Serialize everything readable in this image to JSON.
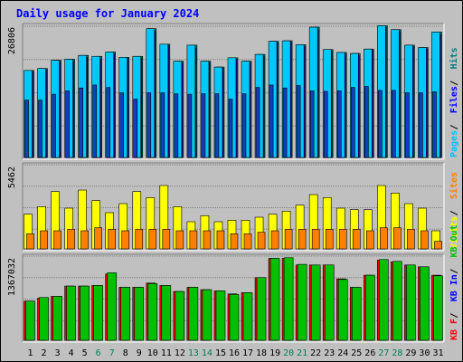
{
  "title": "Daily usage for January 2024",
  "colors": {
    "background": "#c0c0c0",
    "panel": "#c0c0c0",
    "title": "#0000ff",
    "pages": "#00c0ff",
    "files": "#0000ff",
    "hits": "#008080",
    "visits": "#ffff00",
    "sites": "#ff8000",
    "kb_in": "#ff0000",
    "kb_out": "#00c000",
    "weekend_day": "#00805c",
    "weekday_day": "#000000"
  },
  "chart_data": [
    {
      "type": "bar",
      "panel": "top",
      "y_max_label": "26806",
      "ylim": [
        0,
        26806
      ],
      "legend": [
        {
          "label": "Pages",
          "color": "#00c0ff"
        },
        {
          "label": "Files",
          "color": "#0000ff"
        },
        {
          "label": "Hits",
          "color": "#008080"
        }
      ],
      "categories": [
        "1",
        "2",
        "3",
        "4",
        "5",
        "6",
        "7",
        "8",
        "9",
        "10",
        "11",
        "12",
        "13",
        "14",
        "15",
        "16",
        "17",
        "18",
        "19",
        "20",
        "21",
        "22",
        "23",
        "24",
        "25",
        "26",
        "27",
        "28",
        "29",
        "30",
        "31"
      ],
      "series": [
        {
          "name": "Hits",
          "values": [
            17900,
            18300,
            20000,
            20200,
            21000,
            20800,
            21700,
            20600,
            20800,
            26500,
            23300,
            19800,
            23100,
            19800,
            18600,
            20500,
            19800,
            21200,
            23900,
            24000,
            23200,
            26800,
            22200,
            21600,
            21400,
            22300,
            27100,
            26300,
            23100,
            22600,
            25800
          ]
        },
        {
          "name": "Files",
          "values": [
            17700,
            18000,
            19700,
            19900,
            20600,
            20300,
            21300,
            20300,
            20500,
            26000,
            23000,
            19500,
            22500,
            19500,
            18300,
            20200,
            19500,
            20800,
            23600,
            23700,
            22800,
            26200,
            21900,
            21300,
            21000,
            22000,
            26800,
            25900,
            22800,
            22300,
            25300
          ]
        },
        {
          "name": "Pages",
          "values": [
            11800,
            11800,
            13000,
            13700,
            14300,
            14900,
            14400,
            13300,
            12000,
            13300,
            13300,
            13100,
            13000,
            13100,
            13100,
            12000,
            13100,
            14400,
            14900,
            14300,
            14800,
            13700,
            13600,
            13700,
            14400,
            14600,
            13800,
            13800,
            13300,
            13300,
            13500
          ]
        }
      ]
    },
    {
      "type": "bar",
      "panel": "middle",
      "y_max_label": "5462",
      "ylim": [
        0,
        5462
      ],
      "legend": [
        {
          "label": "Visits",
          "color": "#ffff00"
        },
        {
          "label": "Sites",
          "color": "#ff8000"
        }
      ],
      "categories": [
        "1",
        "2",
        "3",
        "4",
        "5",
        "6",
        "7",
        "8",
        "9",
        "10",
        "11",
        "12",
        "13",
        "14",
        "15",
        "16",
        "17",
        "18",
        "19",
        "20",
        "21",
        "22",
        "23",
        "24",
        "25",
        "26",
        "27",
        "28",
        "29",
        "30",
        "31"
      ],
      "series": [
        {
          "name": "Visits",
          "values": [
            2300,
            2800,
            3800,
            2700,
            3900,
            3200,
            2400,
            3000,
            3800,
            3400,
            4200,
            2800,
            1800,
            2200,
            1800,
            1900,
            1900,
            2100,
            2300,
            2500,
            2900,
            3600,
            3400,
            2700,
            2600,
            2600,
            4200,
            3700,
            3000,
            2700,
            1200
          ]
        },
        {
          "name": "Sites",
          "values": [
            1000,
            1200,
            1200,
            1300,
            1200,
            1400,
            1300,
            1200,
            1300,
            1300,
            1300,
            1200,
            1200,
            1200,
            1200,
            1000,
            1000,
            1100,
            1200,
            1300,
            1300,
            1300,
            1300,
            1300,
            1300,
            1200,
            1400,
            1400,
            1300,
            1200,
            500
          ]
        }
      ]
    },
    {
      "type": "bar",
      "panel": "bottom",
      "y_max_label": "1367032",
      "ylim": [
        0,
        1367032
      ],
      "legend": [
        {
          "label": "KB F",
          "color": "#ff0000"
        },
        {
          "label": "KB In",
          "color": "#0000ff"
        },
        {
          "label": "KB Out",
          "color": "#00c000"
        }
      ],
      "categories": [
        "1",
        "2",
        "3",
        "4",
        "5",
        "6",
        "7",
        "8",
        "9",
        "10",
        "11",
        "12",
        "13",
        "14",
        "15",
        "16",
        "17",
        "18",
        "19",
        "20",
        "21",
        "22",
        "23",
        "24",
        "25",
        "26",
        "27",
        "28",
        "29",
        "30",
        "31"
      ],
      "weekend_days": [
        "6",
        "7",
        "13",
        "14",
        "20",
        "21",
        "27",
        "28"
      ],
      "series": [
        {
          "name": "KB F",
          "values": [
            650000,
            700000,
            730000,
            900000,
            900000,
            910000,
            1100000,
            880000,
            880000,
            950000,
            910000,
            810000,
            880000,
            840000,
            820000,
            770000,
            790000,
            1040000,
            1360000,
            1360000,
            1250000,
            1250000,
            1250000,
            1020000,
            880000,
            1080000,
            1330000,
            1300000,
            1250000,
            1220000,
            1080000
          ]
        },
        {
          "name": "KB Out",
          "values": [
            650000,
            710000,
            730000,
            900000,
            900000,
            910000,
            1120000,
            880000,
            880000,
            940000,
            910000,
            810000,
            880000,
            840000,
            820000,
            760000,
            790000,
            1040000,
            1360000,
            1370000,
            1260000,
            1250000,
            1250000,
            1010000,
            880000,
            1080000,
            1340000,
            1310000,
            1250000,
            1220000,
            1070000
          ]
        }
      ]
    }
  ]
}
